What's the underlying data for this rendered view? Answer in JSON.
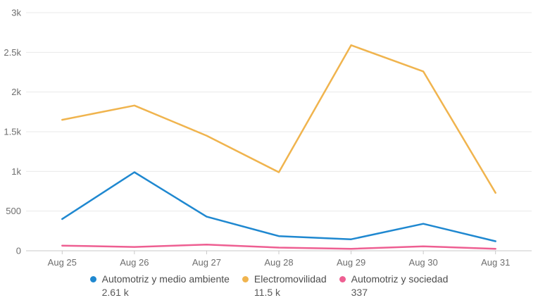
{
  "chart_data": {
    "type": "line",
    "title": "",
    "xlabel": "",
    "ylabel": "",
    "categories": [
      "Aug 25",
      "Aug 26",
      "Aug 27",
      "Aug 28",
      "Aug 29",
      "Aug 30",
      "Aug 31"
    ],
    "y_axis": {
      "min": 0,
      "max": 3000,
      "tick_values": [
        0,
        500,
        1000,
        1500,
        2000,
        2500,
        3000
      ],
      "tick_labels": [
        "0",
        "500",
        "1k",
        "1.5k",
        "2k",
        "2.5k",
        "3k"
      ],
      "grid": true
    },
    "legend_position": "bottom",
    "series": [
      {
        "name": "Automotriz y medio ambiente",
        "total_label": "2.61 k",
        "color": "#1f88d0",
        "values": [
          400,
          990,
          430,
          185,
          145,
          340,
          120
        ]
      },
      {
        "name": "Electromovilidad",
        "total_label": "11.5 k",
        "color": "#f0b44e",
        "values": [
          1650,
          1830,
          1450,
          990,
          2590,
          2260,
          730
        ]
      },
      {
        "name": "Automotriz y sociedad",
        "total_label": "337",
        "color": "#ee5f92",
        "values": [
          65,
          48,
          78,
          40,
          25,
          56,
          25
        ]
      }
    ]
  },
  "style_colors": {
    "grid_line": "#e9e9e9",
    "axis_line": "#c9c9c9",
    "axis_text": "#6e6e6e"
  }
}
